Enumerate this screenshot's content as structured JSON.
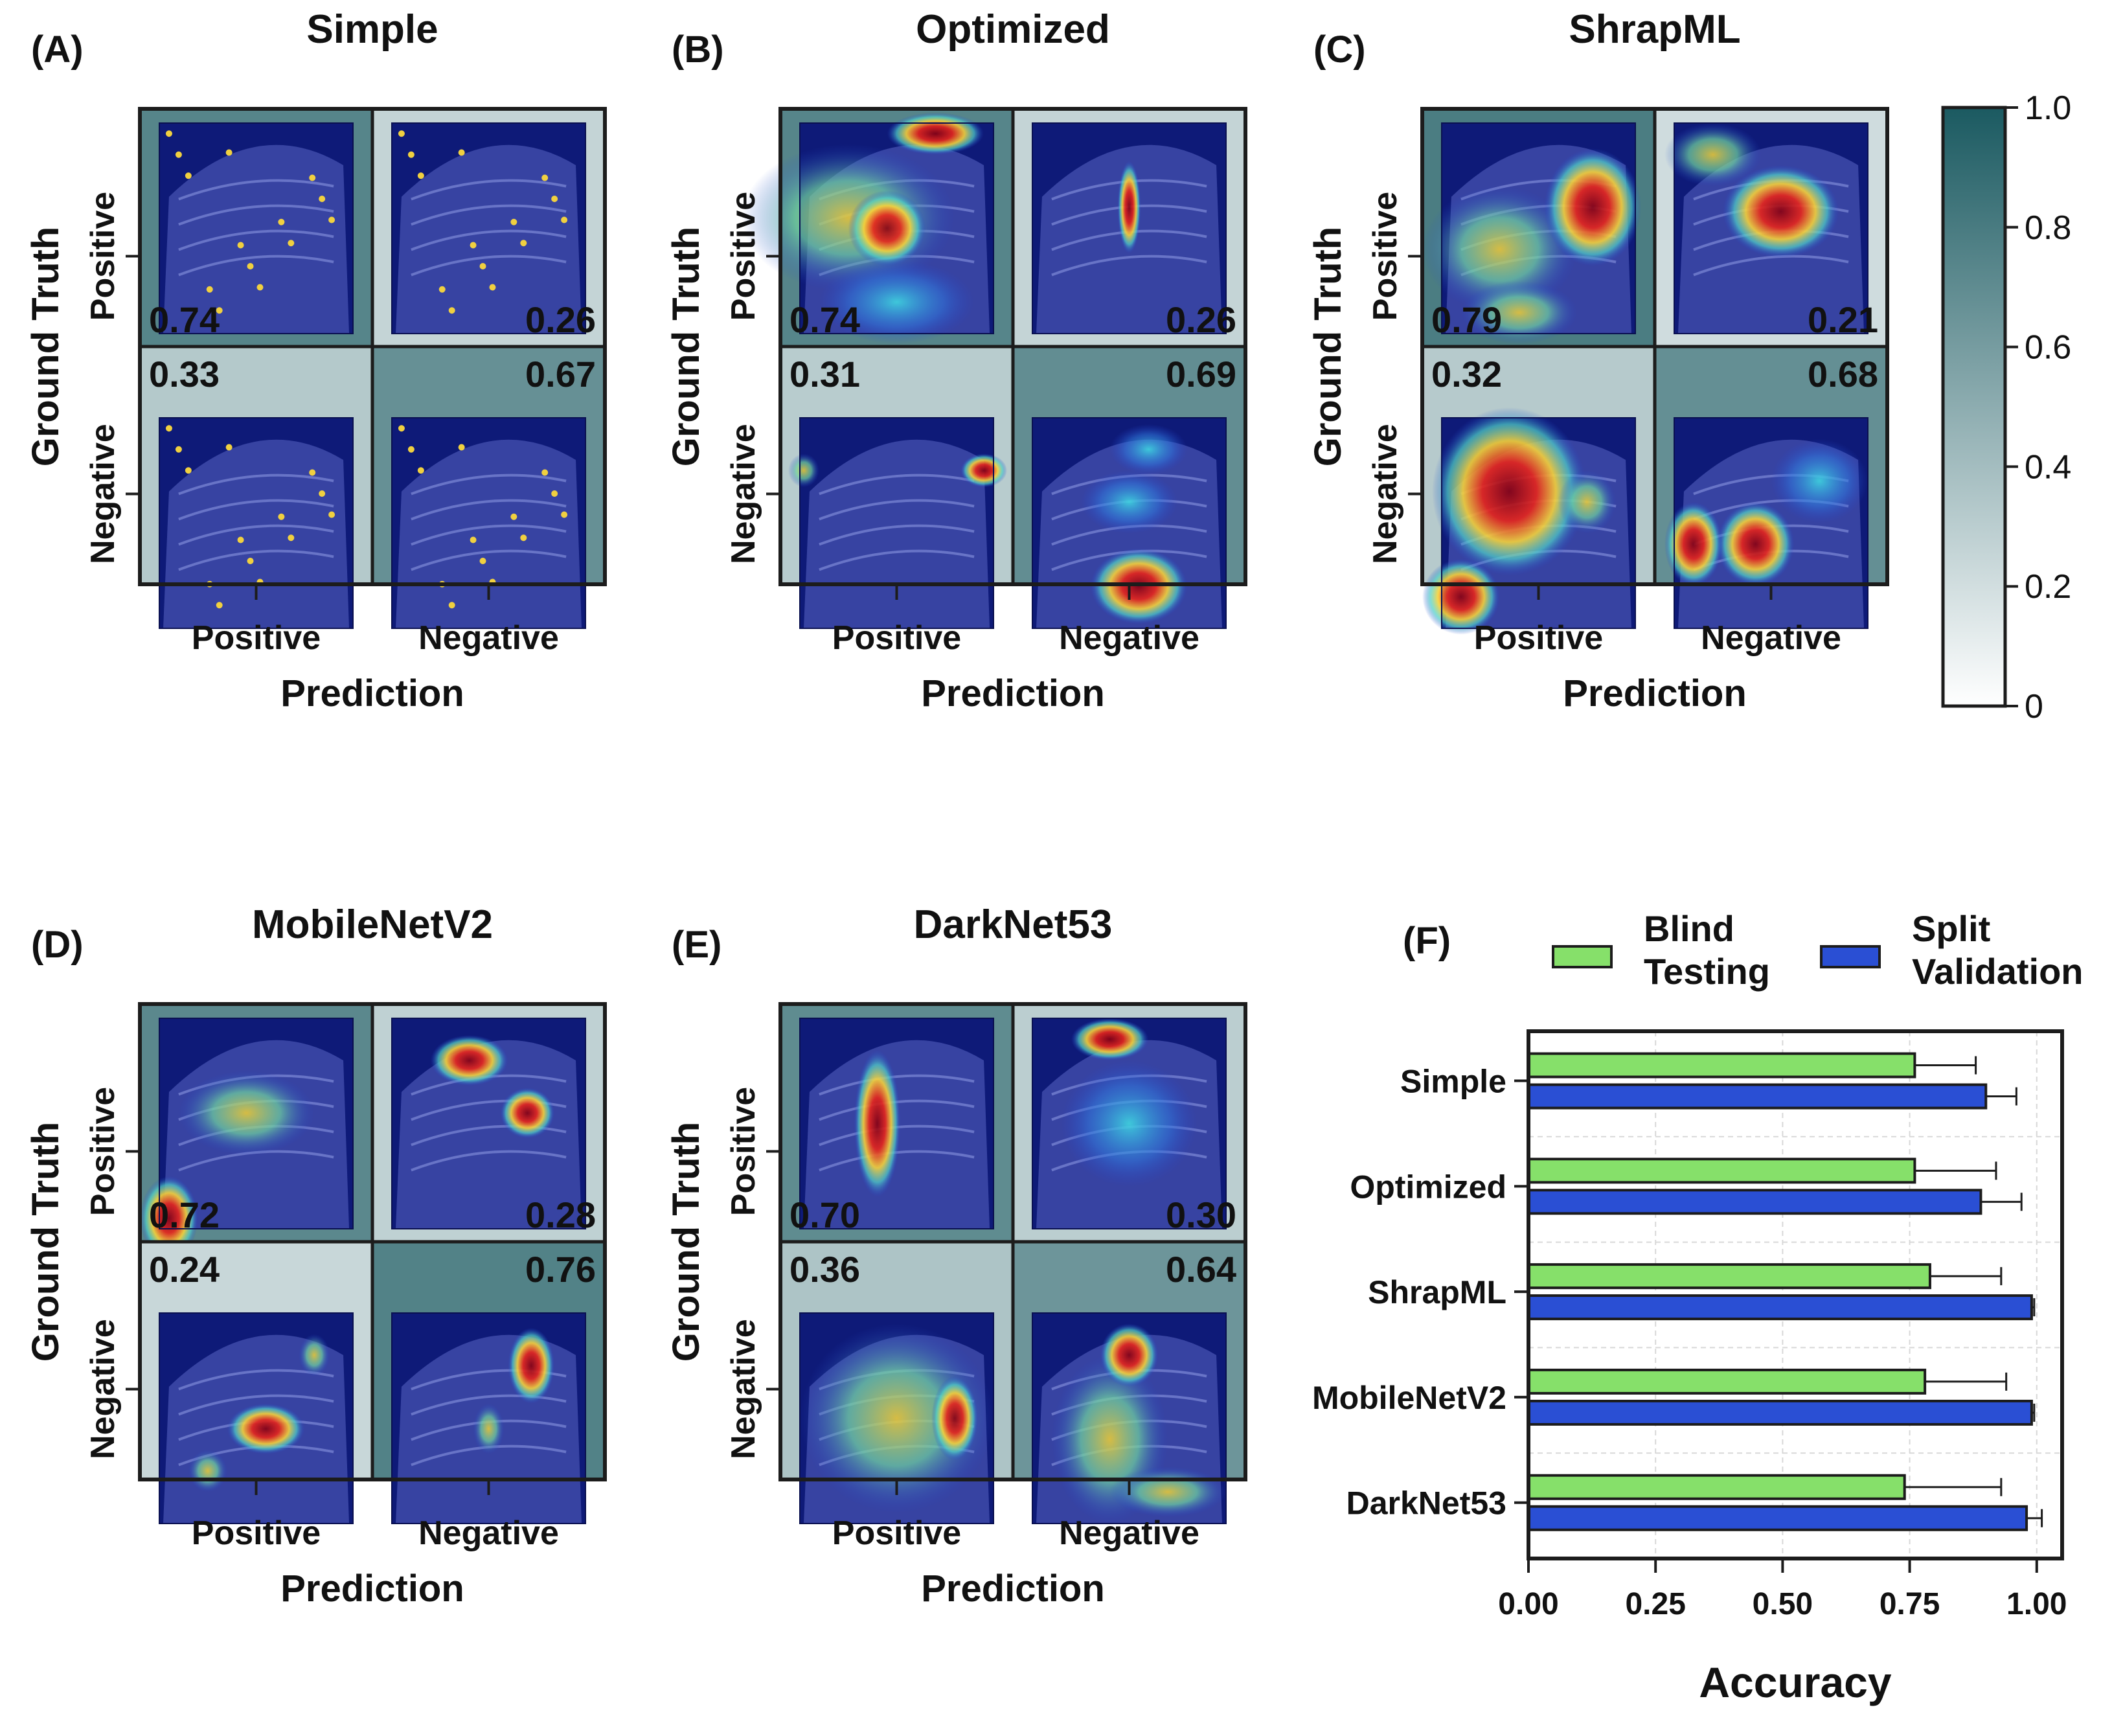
{
  "colors": {
    "green": "#86e06a",
    "blue": "#2a4fd4",
    "frame": "#1c1c1c",
    "cb_low": "#ffffff",
    "cb_high": "#1b5a61",
    "bg_dark": "#0e1a78",
    "scan": "#5a66c4"
  },
  "colorbar": {
    "ticks": [
      "1.0",
      "0.8",
      "0.6",
      "0.4",
      "0.2",
      "0"
    ]
  },
  "matrix_labels": {
    "ylabel": "Ground Truth",
    "xlabel": "Prediction",
    "pos": "Positive",
    "neg": "Negative"
  },
  "chart_data": [
    {
      "type": "heatmap",
      "letter": "(A)",
      "title": "Simple",
      "values": [
        [
          0.74,
          0.26
        ],
        [
          0.33,
          0.67
        ]
      ],
      "labels": [
        [
          "0.74",
          "0.26"
        ],
        [
          "0.33",
          "0.67"
        ]
      ],
      "rows": [
        "Positive",
        "Negative"
      ],
      "cols": [
        "Positive",
        "Negative"
      ],
      "xlabel": "Prediction",
      "ylabel": "Ground Truth"
    },
    {
      "type": "heatmap",
      "letter": "(B)",
      "title": "Optimized",
      "values": [
        [
          0.74,
          0.26
        ],
        [
          0.31,
          0.69
        ]
      ],
      "labels": [
        [
          "0.74",
          "0.26"
        ],
        [
          "0.31",
          "0.69"
        ]
      ],
      "rows": [
        "Positive",
        "Negative"
      ],
      "cols": [
        "Positive",
        "Negative"
      ],
      "xlabel": "Prediction",
      "ylabel": "Ground Truth"
    },
    {
      "type": "heatmap",
      "letter": "(C)",
      "title": "ShrapML",
      "values": [
        [
          0.79,
          0.21
        ],
        [
          0.32,
          0.68
        ]
      ],
      "labels": [
        [
          "0.79",
          "0.21"
        ],
        [
          "0.32",
          "0.68"
        ]
      ],
      "rows": [
        "Positive",
        "Negative"
      ],
      "cols": [
        "Positive",
        "Negative"
      ],
      "xlabel": "Prediction",
      "ylabel": "Ground Truth"
    },
    {
      "type": "heatmap",
      "letter": "(D)",
      "title": "MobileNetV2",
      "values": [
        [
          0.72,
          0.28
        ],
        [
          0.24,
          0.76
        ]
      ],
      "labels": [
        [
          "0.72",
          "0.28"
        ],
        [
          "0.24",
          "0.76"
        ]
      ],
      "rows": [
        "Positive",
        "Negative"
      ],
      "cols": [
        "Positive",
        "Negative"
      ],
      "xlabel": "Prediction",
      "ylabel": "Ground Truth"
    },
    {
      "type": "heatmap",
      "letter": "(E)",
      "title": "DarkNet53",
      "values": [
        [
          0.7,
          0.3
        ],
        [
          0.36,
          0.64
        ]
      ],
      "labels": [
        [
          "0.70",
          "0.30"
        ],
        [
          "0.36",
          "0.64"
        ]
      ],
      "rows": [
        "Positive",
        "Negative"
      ],
      "cols": [
        "Positive",
        "Negative"
      ],
      "xlabel": "Prediction",
      "ylabel": "Ground Truth"
    },
    {
      "type": "bar",
      "orientation": "horizontal",
      "letter": "(F)",
      "title": "",
      "categories": [
        "Simple",
        "Optimized",
        "ShrapML",
        "MobileNetV2",
        "DarkNet53"
      ],
      "series": [
        {
          "name": "Blind Testing",
          "legend_lines": [
            "Blind",
            "Testing"
          ],
          "values": [
            0.76,
            0.76,
            0.79,
            0.78,
            0.74
          ],
          "errors": [
            0.12,
            0.16,
            0.14,
            0.16,
            0.19
          ]
        },
        {
          "name": "Split Validation",
          "legend_lines": [
            "Split",
            "Validation"
          ],
          "values": [
            0.9,
            0.89,
            0.99,
            0.99,
            0.98
          ],
          "errors": [
            0.06,
            0.08,
            0.005,
            0.005,
            0.03
          ]
        }
      ],
      "xlabel": "Accuracy",
      "ylabel": "",
      "xlim": [
        0,
        1.05
      ],
      "xticks": [
        "0.00",
        "0.25",
        "0.50",
        "0.75",
        "1.00"
      ],
      "xtick_values": [
        0,
        0.25,
        0.5,
        0.75,
        1.0
      ],
      "grid": true
    }
  ]
}
